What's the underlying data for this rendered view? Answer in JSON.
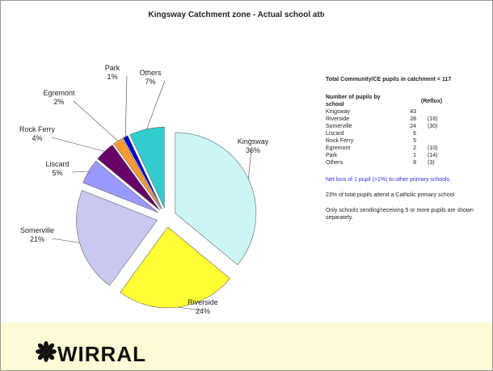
{
  "chart_data": {
    "type": "pie",
    "title": "Kingsway Catchment zone - Actual school attended",
    "categories": [
      "Kingsway",
      "Riverside",
      "Somerville",
      "Liscard",
      "Rock Ferry",
      "Egremont",
      "Park",
      "Others"
    ],
    "values": [
      36,
      24,
      21,
      5,
      4,
      2,
      1,
      7
    ],
    "value_labels": [
      "36%",
      "24%",
      "21%",
      "5%",
      "4%",
      "2%",
      "1%",
      "7%"
    ],
    "colors": [
      "#ccf6f6",
      "#ffff33",
      "#c8c8f0",
      "#9999ff",
      "#660066",
      "#ff9933",
      "#0000cc",
      "#33cccc"
    ]
  },
  "side_panel": {
    "heading": "Total Community/CE pupils in catchment = 117",
    "columns": [
      "Number of pupils by school",
      "(Reflux)"
    ],
    "rows": [
      {
        "school": "Kingsway",
        "pupils": 43
      },
      {
        "school": "Riverside",
        "pupils": 28,
        "reflux": "(16)"
      },
      {
        "school": "Somerville",
        "pupils": 24,
        "reflux": "(30)"
      },
      {
        "school": "Liscard",
        "pupils": 6
      },
      {
        "school": "Rock Ferry",
        "pupils": 5
      },
      {
        "school": "Egremont",
        "pupils": 2,
        "reflux": "(10)"
      },
      {
        "school": "Park",
        "pupils": 1,
        "reflux": "(14)"
      },
      {
        "school": "Others",
        "pupils": 8,
        "reflux": "(3)"
      }
    ],
    "notes": [
      "Net loss of 1 pupil (>1%) to other primary schools.",
      "23% of total pupils attend a Catholic primary school",
      "Only schools sending/receiving 5 or more pupils are shown separately."
    ]
  },
  "footer": {
    "logo": "WIRRAL"
  }
}
